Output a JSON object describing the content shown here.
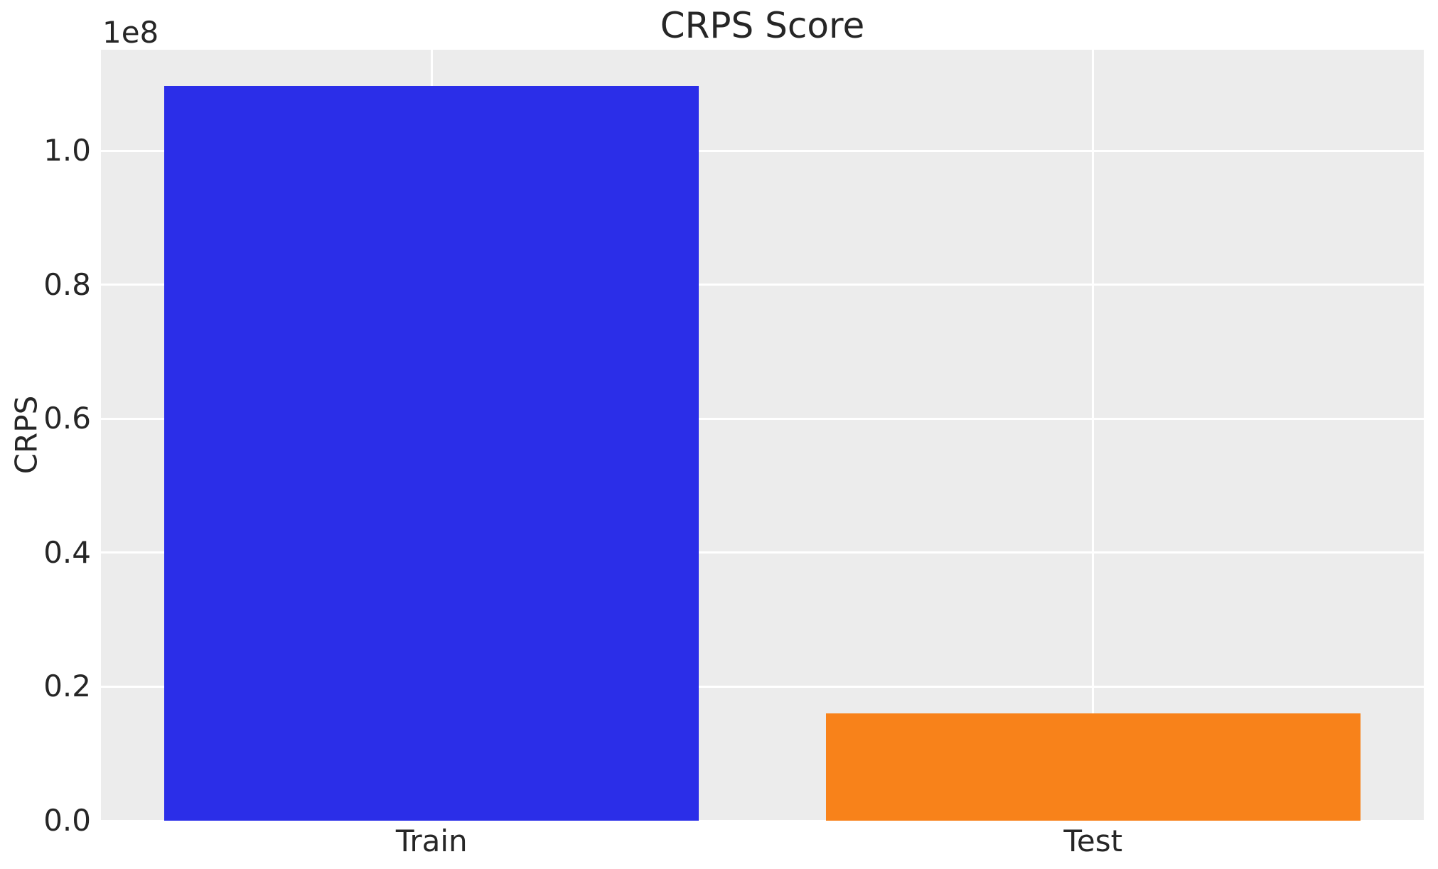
{
  "chart_data": {
    "type": "bar",
    "title": "CRPS Score",
    "xlabel": "",
    "ylabel": "CRPS",
    "offset_text": "1e8",
    "categories": [
      "Train",
      "Test"
    ],
    "values": [
      109700000,
      16000000
    ],
    "bar_colors": [
      "#2b2ee8",
      "#f8821a"
    ],
    "ylim": [
      0,
      115100000
    ],
    "yticks": [
      0,
      20000000,
      40000000,
      60000000,
      80000000,
      100000000
    ],
    "ytick_labels": [
      "0.0",
      "0.2",
      "0.4",
      "0.6",
      "0.8",
      "1.0"
    ],
    "grid": true,
    "legend": false,
    "plot_bg_color": "#ececec",
    "grid_color": "#ffffff",
    "text_color": "#262626",
    "bar_width_fraction": 0.404
  }
}
